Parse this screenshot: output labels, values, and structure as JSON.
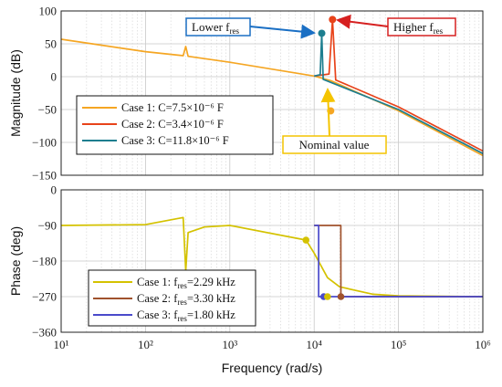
{
  "chart_data": [
    {
      "type": "line",
      "title": "",
      "xlabel": "",
      "ylabel": "Magnitude (dB)",
      "xscale": "log",
      "xlim": [
        10,
        1000000
      ],
      "ylim": [
        -150,
        100
      ],
      "grid": true,
      "legend_position": "middle-left",
      "yticks": [
        "100",
        "50",
        "0",
        "−50",
        "−100",
        "−150"
      ],
      "series": [
        {
          "name": "Case 1: C=7.5×10⁻⁶ F",
          "color": "#f5a623",
          "x": [
            10,
            100,
            280,
            300,
            320,
            1000,
            10000,
            15700,
            100000,
            1000000
          ],
          "y": [
            57,
            38,
            32,
            46,
            31,
            22,
            1,
            -6,
            -52,
            -120
          ]
        },
        {
          "name": "Case 2: C=3.4×10⁻⁶ F",
          "color": "#e8431a",
          "x": [
            10000,
            15000,
            16500,
            18000,
            100000,
            1000000
          ],
          "y": [
            1,
            4,
            87,
            -5,
            -46,
            -113
          ]
        },
        {
          "name": "Case 3: C=11.8×10⁻⁶ F",
          "color": "#1d7e8f",
          "x": [
            10000,
            11800,
            12300,
            12800,
            100000,
            1000000
          ],
          "y": [
            1,
            3,
            66,
            -4,
            -50,
            -117
          ]
        }
      ],
      "annotations": [
        {
          "text": "Lower f",
          "sub": "res",
          "color": "#1a6fc4"
        },
        {
          "text": "Higher f",
          "sub": "res",
          "color": "#d62020"
        },
        {
          "text": "Nominal value",
          "color": "#f4c400"
        }
      ]
    },
    {
      "type": "line",
      "title": "",
      "xlabel": "Frequency  (rad/s)",
      "ylabel": "Phase (deg)",
      "xscale": "log",
      "xlim": [
        10,
        1000000
      ],
      "ylim": [
        -360,
        0
      ],
      "grid": true,
      "legend_position": "bottom-left",
      "yticks": [
        "0",
        "−90",
        "−180",
        "−270",
        "−360"
      ],
      "xticks": [
        "10¹",
        "10²",
        "10³",
        "10⁴",
        "10⁵",
        "10⁶"
      ],
      "series": [
        {
          "name": "Case 1: f",
          "name_sub": "res",
          "name_suffix": "=2.29 kHz",
          "color": "#d4c200",
          "x": [
            10,
            100,
            280,
            300,
            320,
            500,
            1000,
            8000,
            10000,
            14400,
            20000,
            50000,
            100000,
            1000000
          ],
          "y": [
            -90,
            -88,
            -70,
            -205,
            -108,
            -94,
            -90,
            -127,
            -160,
            -222,
            -245,
            -264,
            -268,
            -270
          ]
        },
        {
          "name": "Case 2: f",
          "name_sub": "res",
          "name_suffix": "=3.30 kHz",
          "color": "#a0522d",
          "x": [
            10000,
            18000,
            20700,
            20750,
            1000000
          ],
          "y": [
            -90,
            -90,
            -90,
            -270,
            -270
          ]
        },
        {
          "name": "Case 3: f",
          "name_sub": "res",
          "name_suffix": "=1.80 kHz",
          "color": "#4a4acb",
          "x": [
            10000,
            11300,
            11310,
            1000000
          ],
          "y": [
            -90,
            -90,
            -270,
            -270
          ]
        }
      ]
    }
  ]
}
